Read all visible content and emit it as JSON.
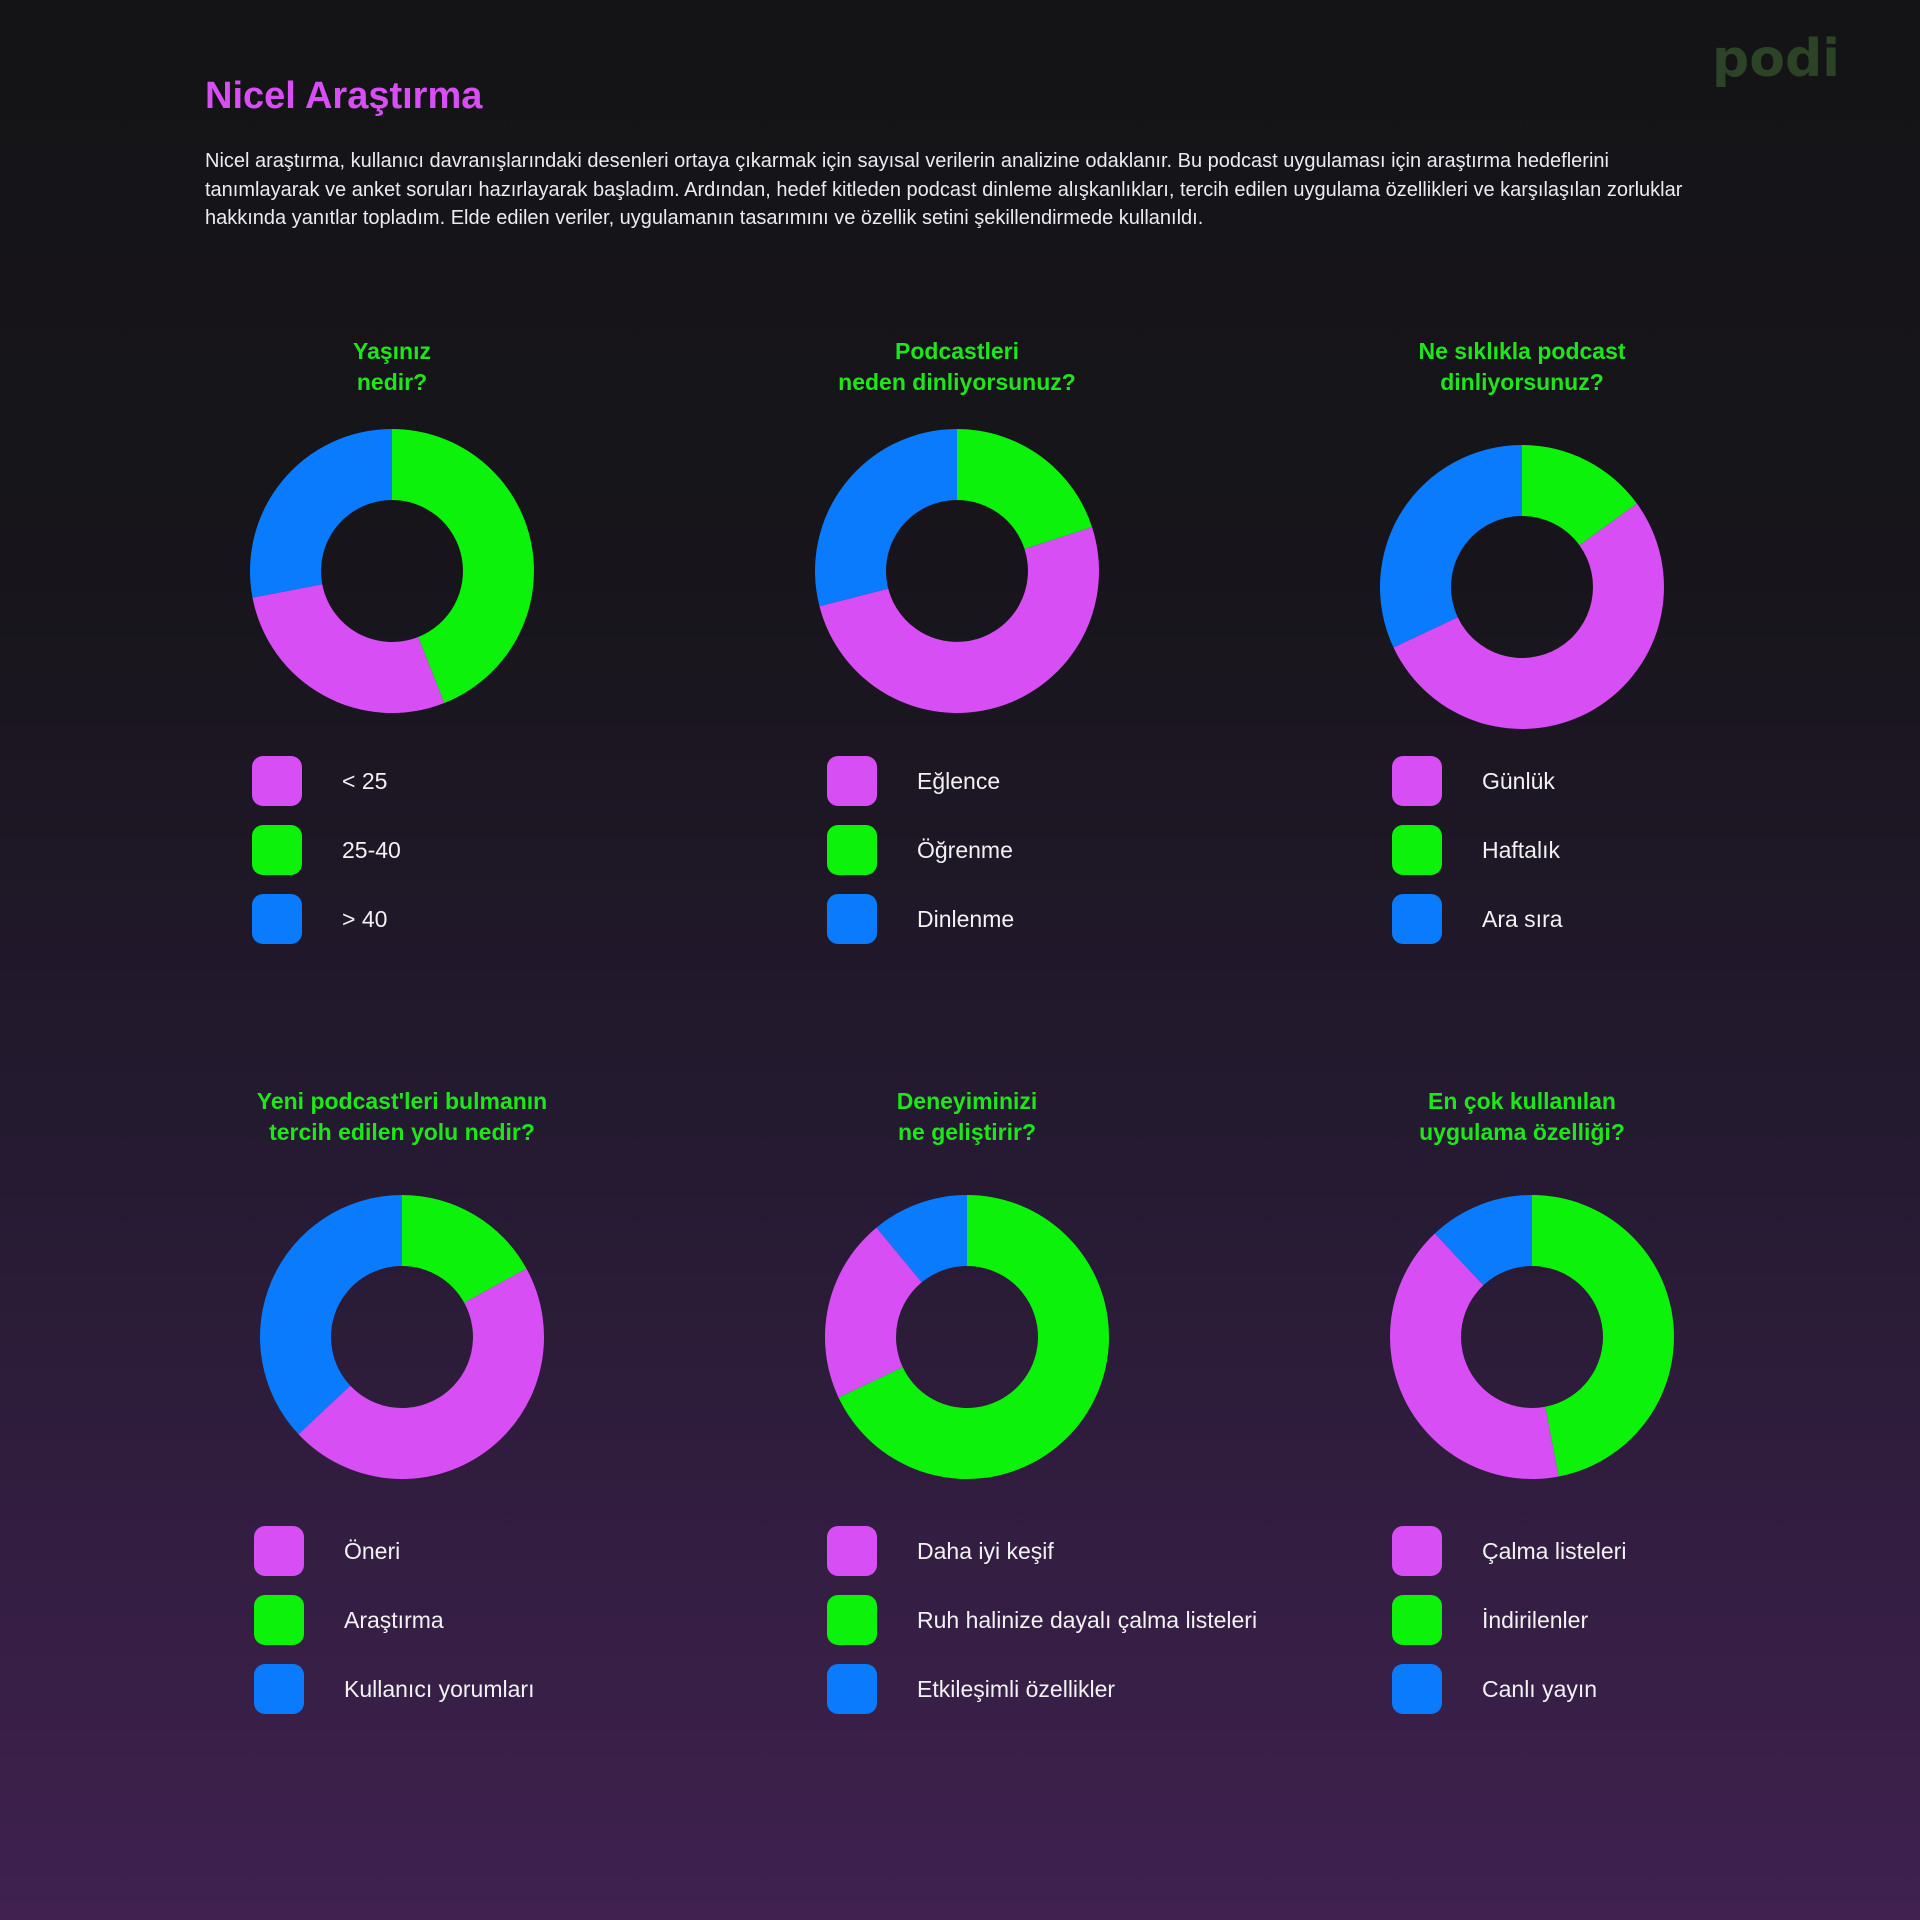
{
  "colors": {
    "pink": "#d84ef5",
    "green": "#0cf20a",
    "blue": "#0a7bfd",
    "title": "#d84ef5",
    "question": "#1fe51a"
  },
  "header": {
    "title": "Nicel Araştırma",
    "description": "Nicel araştırma, kullanıcı davranışlarındaki desenleri ortaya çıkarmak için sayısal verilerin analizine odaklanır. Bu podcast uygulaması için araştırma hedeflerini tanımlayarak ve anket soruları hazırlayarak başladım. Ardından, hedef kitleden podcast dinleme alışkanlıkları, tercih edilen uygulama özellikleri ve karşılaşılan zorluklar hakkında yanıtlar topladım. Elde edilen veriler, uygulamanın tasarımını ve özellik setini şekillendirmede kullanıldı.",
    "logo": "podi"
  },
  "chart_data": [
    {
      "type": "pie",
      "title": "Yaşınız\nnedir?",
      "categories": [
        "< 25",
        "25-40",
        "> 40"
      ],
      "values": [
        28,
        44,
        28
      ],
      "colors": [
        "#d84ef5",
        "#0cf20a",
        "#0a7bfd"
      ]
    },
    {
      "type": "pie",
      "title": "Podcastleri\nneden dinliyorsunuz?",
      "categories": [
        "Eğlence",
        "Öğrenme",
        "Dinlenme"
      ],
      "values": [
        51,
        20,
        29
      ],
      "colors": [
        "#d84ef5",
        "#0cf20a",
        "#0a7bfd"
      ]
    },
    {
      "type": "pie",
      "title": "Ne sıklıkla podcast\ndinliyorsunuz?",
      "categories": [
        "Günlük",
        "Haftalık",
        "Ara sıra"
      ],
      "values": [
        53,
        15,
        32
      ],
      "colors": [
        "#d84ef5",
        "#0cf20a",
        "#0a7bfd"
      ]
    },
    {
      "type": "pie",
      "title": "Yeni podcast'leri bulmanın\ntercih edilen yolu nedir?",
      "categories": [
        "Öneri",
        "Araştırma",
        "Kullanıcı yorumları"
      ],
      "values": [
        46,
        17,
        37
      ],
      "colors": [
        "#d84ef5",
        "#0cf20a",
        "#0a7bfd"
      ]
    },
    {
      "type": "pie",
      "title": "Deneyiminizi\nne geliştirir?",
      "categories": [
        "Daha iyi keşif",
        "Ruh halinize dayalı çalma listeleri",
        "Etkileşimli özellikler"
      ],
      "values": [
        21,
        68,
        11
      ],
      "colors": [
        "#d84ef5",
        "#0cf20a",
        "#0a7bfd"
      ]
    },
    {
      "type": "pie",
      "title": "En çok kullanılan\nuygulama özelliği?",
      "categories": [
        "Çalma listeleri",
        "İndirilenler",
        "Canlı yayın"
      ],
      "values": [
        41,
        47,
        12
      ],
      "colors": [
        "#d84ef5",
        "#0cf20a",
        "#0a7bfd"
      ]
    }
  ]
}
